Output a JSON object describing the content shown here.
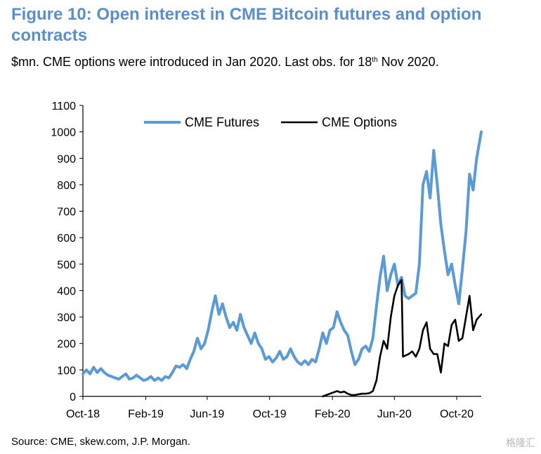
{
  "title": "Figure 10: Open interest in CME Bitcoin futures and option contracts",
  "subtitle_pre": "$mn. CME options were introduced in Jan 2020. Last obs. for 18",
  "subtitle_sup": "th",
  "subtitle_post": " Nov 2020.",
  "source": "Source: CME, skew.com, J.P. Morgan.",
  "watermark": "格隆汇",
  "colors": {
    "futures": "#5b9bd5",
    "options": "#000000",
    "title": "#5b8fc9"
  },
  "chart_data": {
    "type": "line",
    "title": "Figure 10: Open interest in CME Bitcoin futures and option contracts",
    "ylabel": "$mn",
    "ylim": [
      0,
      1100
    ],
    "yticks": [
      0,
      100,
      200,
      300,
      400,
      500,
      600,
      700,
      800,
      900,
      1000,
      1100
    ],
    "xlim": [
      "2018-10-01",
      "2020-11-18"
    ],
    "xticks": [
      {
        "date": "2018-10-01",
        "label": "Oct-18"
      },
      {
        "date": "2019-02-01",
        "label": "Feb-19"
      },
      {
        "date": "2019-06-01",
        "label": "Jun-19"
      },
      {
        "date": "2019-10-01",
        "label": "Oct-19"
      },
      {
        "date": "2020-02-01",
        "label": "Feb-20"
      },
      {
        "date": "2020-06-01",
        "label": "Jun-20"
      },
      {
        "date": "2020-10-01",
        "label": "Oct-20"
      }
    ],
    "legend": "top-center",
    "grid": false,
    "series": [
      {
        "name": "CME Futures",
        "color": "#5b9bd5",
        "points": [
          [
            "2018-10-01",
            85
          ],
          [
            "2018-10-08",
            100
          ],
          [
            "2018-10-15",
            85
          ],
          [
            "2018-10-22",
            110
          ],
          [
            "2018-10-29",
            90
          ],
          [
            "2018-11-05",
            105
          ],
          [
            "2018-11-12",
            90
          ],
          [
            "2018-11-19",
            80
          ],
          [
            "2018-11-26",
            75
          ],
          [
            "2018-12-03",
            70
          ],
          [
            "2018-12-10",
            65
          ],
          [
            "2018-12-17",
            75
          ],
          [
            "2018-12-24",
            85
          ],
          [
            "2018-12-31",
            65
          ],
          [
            "2019-01-07",
            70
          ],
          [
            "2019-01-14",
            80
          ],
          [
            "2019-01-21",
            70
          ],
          [
            "2019-01-28",
            60
          ],
          [
            "2019-02-04",
            65
          ],
          [
            "2019-02-11",
            75
          ],
          [
            "2019-02-18",
            60
          ],
          [
            "2019-02-25",
            70
          ],
          [
            "2019-03-04",
            60
          ],
          [
            "2019-03-11",
            75
          ],
          [
            "2019-03-18",
            70
          ],
          [
            "2019-03-25",
            90
          ],
          [
            "2019-04-01",
            115
          ],
          [
            "2019-04-08",
            110
          ],
          [
            "2019-04-15",
            120
          ],
          [
            "2019-04-22",
            105
          ],
          [
            "2019-04-29",
            140
          ],
          [
            "2019-05-06",
            170
          ],
          [
            "2019-05-13",
            220
          ],
          [
            "2019-05-20",
            180
          ],
          [
            "2019-05-27",
            200
          ],
          [
            "2019-06-03",
            250
          ],
          [
            "2019-06-10",
            320
          ],
          [
            "2019-06-17",
            380
          ],
          [
            "2019-06-24",
            310
          ],
          [
            "2019-07-01",
            350
          ],
          [
            "2019-07-08",
            300
          ],
          [
            "2019-07-15",
            260
          ],
          [
            "2019-07-22",
            280
          ],
          [
            "2019-07-29",
            250
          ],
          [
            "2019-08-05",
            310
          ],
          [
            "2019-08-12",
            260
          ],
          [
            "2019-08-19",
            230
          ],
          [
            "2019-08-26",
            200
          ],
          [
            "2019-09-02",
            240
          ],
          [
            "2019-09-09",
            200
          ],
          [
            "2019-09-16",
            180
          ],
          [
            "2019-09-23",
            140
          ],
          [
            "2019-09-30",
            150
          ],
          [
            "2019-10-07",
            130
          ],
          [
            "2019-10-14",
            145
          ],
          [
            "2019-10-21",
            170
          ],
          [
            "2019-10-28",
            140
          ],
          [
            "2019-11-04",
            150
          ],
          [
            "2019-11-11",
            180
          ],
          [
            "2019-11-18",
            150
          ],
          [
            "2019-11-25",
            130
          ],
          [
            "2019-12-02",
            120
          ],
          [
            "2019-12-09",
            135
          ],
          [
            "2019-12-16",
            120
          ],
          [
            "2019-12-23",
            140
          ],
          [
            "2019-12-30",
            130
          ],
          [
            "2020-01-06",
            180
          ],
          [
            "2020-01-13",
            240
          ],
          [
            "2020-01-20",
            200
          ],
          [
            "2020-01-27",
            250
          ],
          [
            "2020-02-03",
            260
          ],
          [
            "2020-02-10",
            320
          ],
          [
            "2020-02-17",
            280
          ],
          [
            "2020-02-24",
            250
          ],
          [
            "2020-03-02",
            230
          ],
          [
            "2020-03-09",
            170
          ],
          [
            "2020-03-16",
            120
          ],
          [
            "2020-03-23",
            140
          ],
          [
            "2020-03-30",
            180
          ],
          [
            "2020-04-06",
            190
          ],
          [
            "2020-04-13",
            170
          ],
          [
            "2020-04-20",
            220
          ],
          [
            "2020-04-27",
            340
          ],
          [
            "2020-05-04",
            450
          ],
          [
            "2020-05-11",
            530
          ],
          [
            "2020-05-18",
            400
          ],
          [
            "2020-05-25",
            460
          ],
          [
            "2020-06-01",
            500
          ],
          [
            "2020-06-08",
            420
          ],
          [
            "2020-06-15",
            450
          ],
          [
            "2020-06-22",
            380
          ],
          [
            "2020-06-29",
            370
          ],
          [
            "2020-07-06",
            380
          ],
          [
            "2020-07-13",
            390
          ],
          [
            "2020-07-20",
            500
          ],
          [
            "2020-07-27",
            800
          ],
          [
            "2020-08-03",
            850
          ],
          [
            "2020-08-10",
            750
          ],
          [
            "2020-08-17",
            930
          ],
          [
            "2020-08-24",
            800
          ],
          [
            "2020-08-31",
            650
          ],
          [
            "2020-09-07",
            550
          ],
          [
            "2020-09-14",
            460
          ],
          [
            "2020-09-21",
            500
          ],
          [
            "2020-09-28",
            420
          ],
          [
            "2020-10-05",
            350
          ],
          [
            "2020-10-12",
            480
          ],
          [
            "2020-10-19",
            620
          ],
          [
            "2020-10-26",
            840
          ],
          [
            "2020-11-02",
            780
          ],
          [
            "2020-11-09",
            900
          ],
          [
            "2020-11-18",
            1000
          ]
        ]
      },
      {
        "name": "CME Options",
        "color": "#000000",
        "points": [
          [
            "2020-01-13",
            0
          ],
          [
            "2020-01-20",
            5
          ],
          [
            "2020-01-27",
            10
          ],
          [
            "2020-02-03",
            15
          ],
          [
            "2020-02-10",
            20
          ],
          [
            "2020-02-17",
            15
          ],
          [
            "2020-02-24",
            18
          ],
          [
            "2020-03-02",
            10
          ],
          [
            "2020-03-09",
            5
          ],
          [
            "2020-03-16",
            5
          ],
          [
            "2020-03-23",
            8
          ],
          [
            "2020-03-30",
            10
          ],
          [
            "2020-04-06",
            10
          ],
          [
            "2020-04-13",
            12
          ],
          [
            "2020-04-20",
            20
          ],
          [
            "2020-04-27",
            60
          ],
          [
            "2020-05-04",
            150
          ],
          [
            "2020-05-11",
            210
          ],
          [
            "2020-05-18",
            180
          ],
          [
            "2020-05-25",
            300
          ],
          [
            "2020-06-01",
            380
          ],
          [
            "2020-06-08",
            420
          ],
          [
            "2020-06-15",
            440
          ],
          [
            "2020-06-18",
            150
          ],
          [
            "2020-06-29",
            160
          ],
          [
            "2020-07-06",
            170
          ],
          [
            "2020-07-13",
            150
          ],
          [
            "2020-07-20",
            180
          ],
          [
            "2020-07-27",
            250
          ],
          [
            "2020-08-03",
            280
          ],
          [
            "2020-08-10",
            180
          ],
          [
            "2020-08-17",
            160
          ],
          [
            "2020-08-24",
            160
          ],
          [
            "2020-08-31",
            90
          ],
          [
            "2020-09-07",
            200
          ],
          [
            "2020-09-14",
            190
          ],
          [
            "2020-09-21",
            270
          ],
          [
            "2020-09-28",
            290
          ],
          [
            "2020-10-05",
            210
          ],
          [
            "2020-10-12",
            220
          ],
          [
            "2020-10-19",
            300
          ],
          [
            "2020-10-26",
            380
          ],
          [
            "2020-11-02",
            250
          ],
          [
            "2020-11-09",
            290
          ],
          [
            "2020-11-18",
            310
          ]
        ]
      }
    ]
  }
}
